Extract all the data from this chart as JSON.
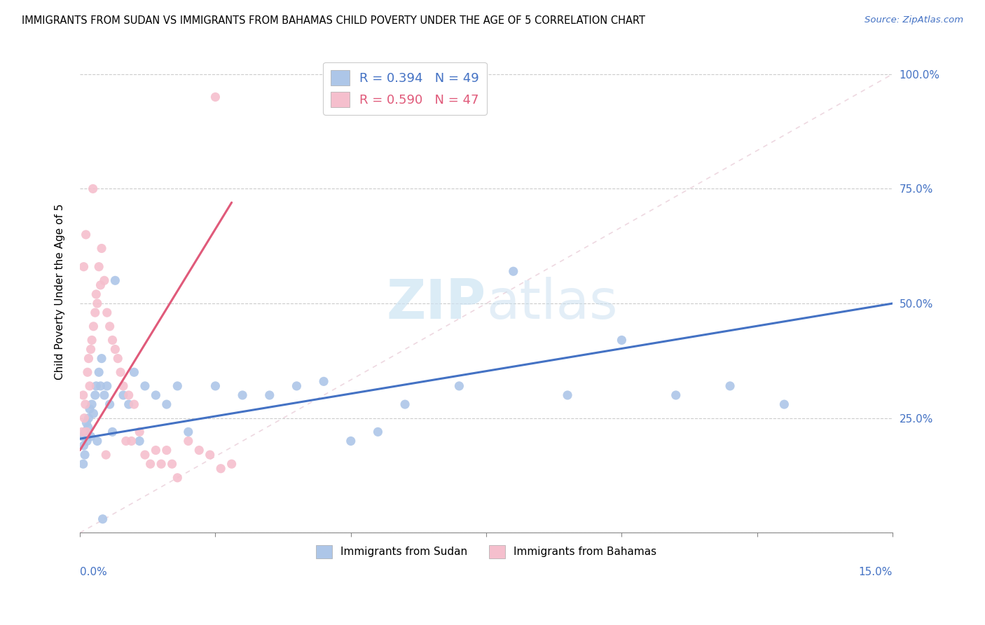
{
  "title": "IMMIGRANTS FROM SUDAN VS IMMIGRANTS FROM BAHAMAS CHILD POVERTY UNDER THE AGE OF 5 CORRELATION CHART",
  "source": "Source: ZipAtlas.com",
  "ylabel": "Child Poverty Under the Age of 5",
  "sudan_color": "#adc6e8",
  "bahamas_color": "#f5bfcd",
  "sudan_line_color": "#4472c4",
  "bahamas_line_color": "#e05a7a",
  "xlim": [
    0,
    15
  ],
  "ylim": [
    0,
    105
  ],
  "watermark": "ZIPatlas",
  "watermark_color": "#cde4f3",
  "sudan_pts_x": [
    0.05,
    0.07,
    0.09,
    0.1,
    0.12,
    0.13,
    0.15,
    0.16,
    0.18,
    0.2,
    0.22,
    0.25,
    0.28,
    0.3,
    0.32,
    0.35,
    0.38,
    0.4,
    0.45,
    0.5,
    0.55,
    0.6,
    0.65,
    0.8,
    0.9,
    1.0,
    1.1,
    1.2,
    1.4,
    1.6,
    1.8,
    2.0,
    2.5,
    3.0,
    3.5,
    4.0,
    4.5,
    5.0,
    5.5,
    6.0,
    7.0,
    8.0,
    9.0,
    10.0,
    11.0,
    12.0,
    13.0,
    0.06,
    0.42
  ],
  "sudan_pts_y": [
    21,
    19,
    17,
    22,
    24,
    20,
    23,
    25,
    27,
    21,
    28,
    26,
    30,
    32,
    20,
    35,
    32,
    38,
    30,
    32,
    28,
    22,
    55,
    30,
    28,
    35,
    20,
    32,
    30,
    28,
    32,
    22,
    32,
    30,
    30,
    32,
    33,
    20,
    22,
    28,
    32,
    57,
    30,
    42,
    30,
    32,
    28,
    15,
    3
  ],
  "bahamas_pts_x": [
    0.04,
    0.06,
    0.08,
    0.1,
    0.12,
    0.14,
    0.16,
    0.18,
    0.2,
    0.22,
    0.25,
    0.28,
    0.3,
    0.32,
    0.35,
    0.38,
    0.4,
    0.45,
    0.48,
    0.5,
    0.55,
    0.6,
    0.65,
    0.7,
    0.75,
    0.8,
    0.85,
    0.9,
    0.95,
    1.0,
    1.1,
    1.2,
    1.3,
    1.4,
    1.5,
    1.6,
    1.7,
    1.8,
    2.0,
    2.2,
    2.4,
    2.6,
    2.8,
    0.07,
    0.11,
    0.24,
    2.5
  ],
  "bahamas_pts_y": [
    22,
    30,
    25,
    28,
    22,
    35,
    38,
    32,
    40,
    42,
    45,
    48,
    52,
    50,
    58,
    54,
    62,
    55,
    17,
    48,
    45,
    42,
    40,
    38,
    35,
    32,
    20,
    30,
    20,
    28,
    22,
    17,
    15,
    18,
    15,
    18,
    15,
    12,
    20,
    18,
    17,
    14,
    15,
    58,
    65,
    75,
    95
  ],
  "sudan_line_x": [
    0,
    15
  ],
  "sudan_line_y": [
    20.5,
    50.0
  ],
  "bahamas_line_x": [
    0,
    2.8
  ],
  "bahamas_line_y": [
    18.0,
    72.0
  ],
  "ref_line_x": [
    0,
    15
  ],
  "ref_line_y": [
    0,
    100
  ],
  "yticks": [
    0,
    25,
    50,
    75,
    100
  ],
  "ytick_labels_right": [
    "",
    "25.0%",
    "50.0%",
    "75.0%",
    "100.0%"
  ],
  "xtick_positions": [
    0,
    2.5,
    5.0,
    7.5,
    10.0,
    12.5,
    15.0
  ]
}
